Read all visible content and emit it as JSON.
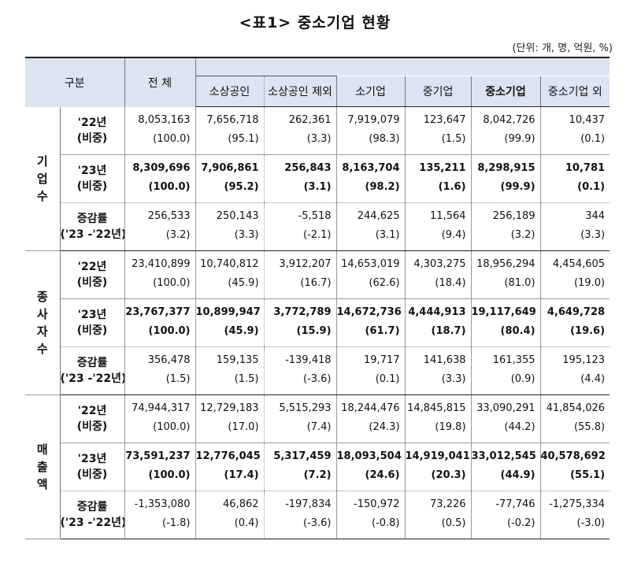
{
  "title": "<표1> 중소기업 현황",
  "unit": "(단위: 개, 명, 억원, %)",
  "headers": {
    "group": "구분",
    "total": "전 체",
    "small_merchants": "소상공인",
    "excl_small_merchants": "소상공인 제외",
    "small": "소기업",
    "medium": "중기업",
    "sme": "중소기업",
    "non_sme": "중소기업 외"
  },
  "labels": {
    "y22": [
      "'22년",
      "(비중)"
    ],
    "y23": [
      "'23년",
      "(비중)"
    ],
    "chg": [
      "증감률",
      "('23 -'22년)"
    ]
  },
  "categories": [
    {
      "name": "기\n업\n수",
      "rows": [
        {
          "type": "y22",
          "bold": false,
          "a": [
            "8,053,163",
            "7,656,718",
            "262,361",
            "7,919,079",
            "123,647",
            "8,042,726",
            "10,437"
          ],
          "b": [
            "(100.0)",
            "(95.1)",
            "(3.3)",
            "(98.3)",
            "(1.5)",
            "(99.9)",
            "(0.1)"
          ]
        },
        {
          "type": "y23",
          "bold": true,
          "a": [
            "8,309,696",
            "7,906,861",
            "256,843",
            "8,163,704",
            "135,211",
            "8,298,915",
            "10,781"
          ],
          "b": [
            "(100.0)",
            "(95.2)",
            "(3.1)",
            "(98.2)",
            "(1.6)",
            "(99.9)",
            "(0.1)"
          ]
        },
        {
          "type": "chg",
          "bold": false,
          "a": [
            "256,533",
            "250,143",
            "-5,518",
            "244,625",
            "11,564",
            "256,189",
            "344"
          ],
          "b": [
            "(3.2)",
            "(3.3)",
            "(-2.1)",
            "(3.1)",
            "(9.4)",
            "(3.2)",
            "(3.3)"
          ]
        }
      ]
    },
    {
      "name": "종\n사\n자\n수",
      "rows": [
        {
          "type": "y22",
          "bold": false,
          "a": [
            "23,410,899",
            "10,740,812",
            "3,912,207",
            "14,653,019",
            "4,303,275",
            "18,956,294",
            "4,454,605"
          ],
          "b": [
            "(100.0)",
            "(45.9)",
            "(16.7)",
            "(62.6)",
            "(18.4)",
            "(81.0)",
            "(19.0)"
          ]
        },
        {
          "type": "y23",
          "bold": true,
          "a": [
            "23,767,377",
            "10,899,947",
            "3,772,789",
            "14,672,736",
            "4,444,913",
            "19,117,649",
            "4,649,728"
          ],
          "b": [
            "(100.0)",
            "(45.9)",
            "(15.9)",
            "(61.7)",
            "(18.7)",
            "(80.4)",
            "(19.6)"
          ]
        },
        {
          "type": "chg",
          "bold": false,
          "a": [
            "356,478",
            "159,135",
            "-139,418",
            "19,717",
            "141,638",
            "161,355",
            "195,123"
          ],
          "b": [
            "(1.5)",
            "(1.5)",
            "(-3.6)",
            "(0.1)",
            "(3.3)",
            "(0.9)",
            "(4.4)"
          ]
        }
      ]
    },
    {
      "name": "매\n출\n액",
      "rows": [
        {
          "type": "y22",
          "bold": false,
          "a": [
            "74,944,317",
            "12,729,183",
            "5,515,293",
            "18,244,476",
            "14,845,815",
            "33,090,291",
            "41,854,026"
          ],
          "b": [
            "(100.0)",
            "(17.0)",
            "(7.4)",
            "(24.3)",
            "(19.8)",
            "(44.2)",
            "(55.8)"
          ]
        },
        {
          "type": "y23",
          "bold": true,
          "a": [
            "73,591,237",
            "12,776,045",
            "5,317,459",
            "18,093,504",
            "14,919,041",
            "33,012,545",
            "40,578,692"
          ],
          "b": [
            "(100.0)",
            "(17.4)",
            "(7.2)",
            "(24.6)",
            "(20.3)",
            "(44.9)",
            "(55.1)"
          ]
        },
        {
          "type": "chg",
          "bold": false,
          "a": [
            "-1,353,080",
            "46,862",
            "-197,834",
            "-150,972",
            "73,226",
            "-77,746",
            "-1,275,334"
          ],
          "b": [
            "(-1.8)",
            "(0.4)",
            "(-3.6)",
            "(-0.8)",
            "(0.5)",
            "(-0.2)",
            "(-3.0)"
          ]
        }
      ]
    }
  ]
}
